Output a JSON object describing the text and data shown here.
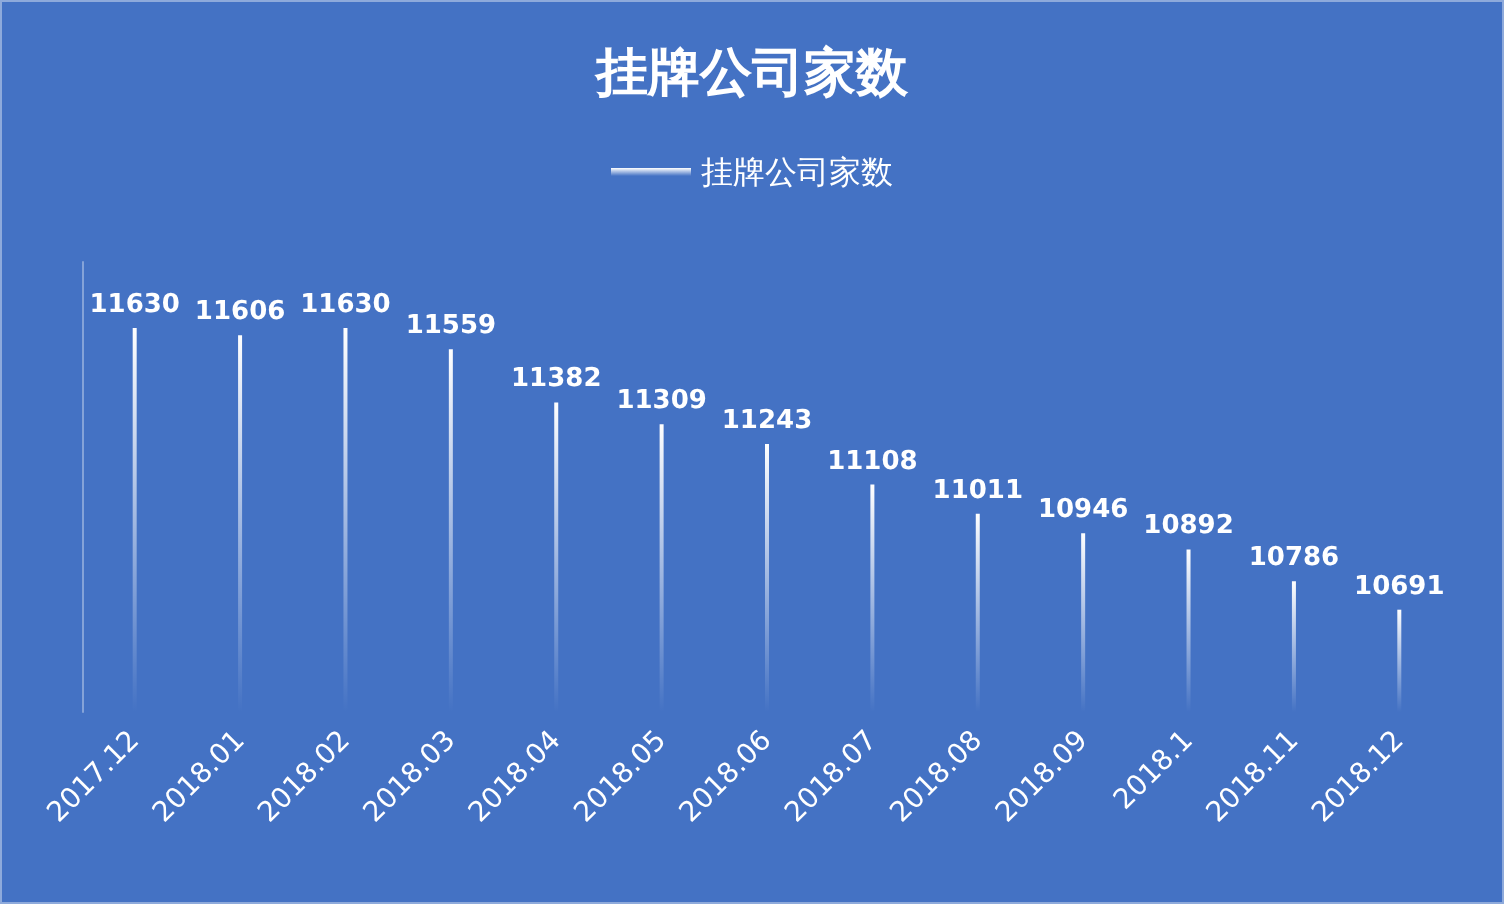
{
  "chart_data": {
    "type": "bar",
    "title": "挂牌公司家数",
    "categories": [
      "2017.12",
      "2018.01",
      "2018.02",
      "2018.03",
      "2018.04",
      "2018.05",
      "2018.06",
      "2018.07",
      "2018.08",
      "2018.09",
      "2018.1",
      "2018.11",
      "2018.12"
    ],
    "series": [
      {
        "name": "挂牌公司家数",
        "color": "#ffffff",
        "values": [
          11630,
          11606,
          11630,
          11559,
          11382,
          11309,
          11243,
          11108,
          11011,
          10946,
          10892,
          10786,
          10691
        ]
      }
    ],
    "ylim": [
      10350,
      11850
    ],
    "data_labels": true,
    "legend": "top",
    "tick_labels": "x",
    "grid": false
  }
}
